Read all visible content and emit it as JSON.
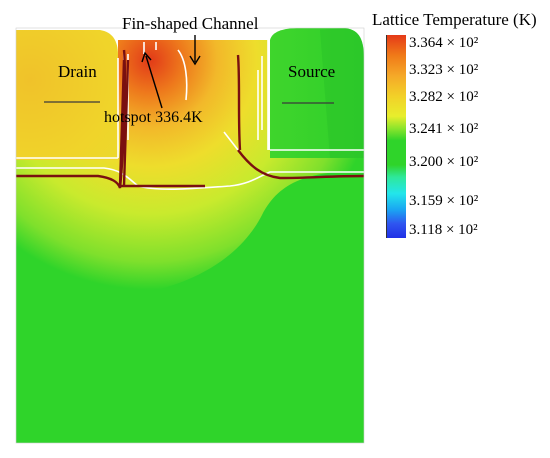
{
  "labels": {
    "channel": "Fin-shaped Channel",
    "drain": "Drain",
    "source": "Source",
    "hotspot": "hotspot 336.4K"
  },
  "colorbar": {
    "title": "Lattice Temperature (K)",
    "ticks": [
      "3.364 × 10²",
      "3.323 × 10²",
      "3.282 × 10²",
      "3.241 × 10²",
      "3.200 × 10²",
      "3.159 × 10²",
      "3.118 × 10²"
    ]
  },
  "colors": {
    "hot": "#e4401c",
    "orange": "#f39a26",
    "yellow": "#f1df2a",
    "yellow_green": "#c8ea2c",
    "green": "#2fd42a",
    "cool_blue": "#2030e6",
    "contour": "#7a1010",
    "boundary": "#ffffff"
  }
}
